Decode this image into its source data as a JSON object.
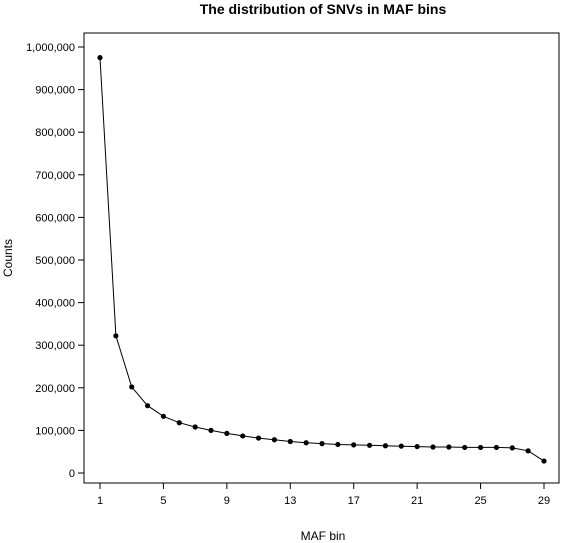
{
  "chart_data": {
    "type": "line",
    "title": "The distribution of SNVs in MAF bins",
    "xlabel": "MAF bin",
    "ylabel": "Counts",
    "x": [
      1,
      2,
      3,
      4,
      5,
      6,
      7,
      8,
      9,
      10,
      11,
      12,
      13,
      14,
      15,
      16,
      17,
      18,
      19,
      20,
      21,
      22,
      23,
      24,
      25,
      26,
      27,
      28,
      29
    ],
    "values": [
      975000,
      322000,
      202000,
      158000,
      133000,
      118000,
      108000,
      100000,
      93000,
      87000,
      82000,
      78000,
      74000,
      71000,
      69000,
      67000,
      66000,
      65000,
      64000,
      63000,
      62000,
      61000,
      61000,
      60000,
      60000,
      60000,
      59000,
      52000,
      28000
    ],
    "xticks": [
      1,
      5,
      9,
      13,
      17,
      21,
      25,
      29
    ],
    "xtick_labels": [
      "1",
      "5",
      "9",
      "13",
      "17",
      "21",
      "25",
      "29"
    ],
    "yticks": [
      0,
      100000,
      200000,
      300000,
      400000,
      500000,
      600000,
      700000,
      800000,
      900000,
      1000000
    ],
    "ytick_labels": [
      "0",
      "100,000",
      "200,000",
      "300,000",
      "400,000",
      "500,000",
      "600,000",
      "700,000",
      "800,000",
      "900,000",
      "1,000,000"
    ],
    "xlim": [
      1,
      29
    ],
    "ylim": [
      0,
      1000000
    ],
    "grid": false,
    "line_color": "#000000",
    "marker": "filled-circle"
  }
}
